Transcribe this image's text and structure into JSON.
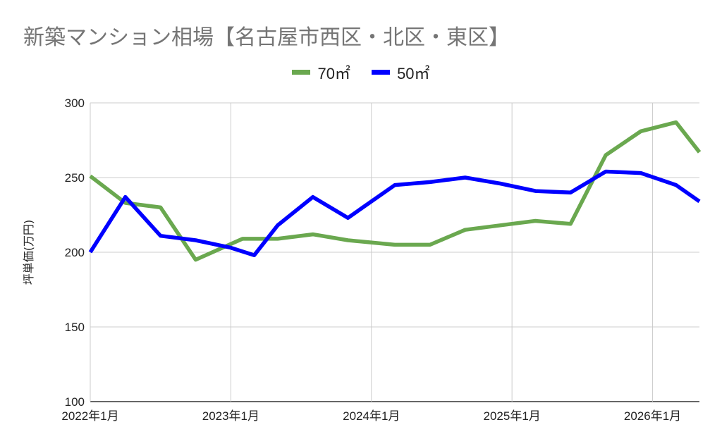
{
  "chart_data": {
    "type": "line",
    "title": "新築マンション相場【名古屋市西区・北区・東区】",
    "ylabel": "坪単価(万円)",
    "xlabel": "",
    "ylim": [
      100,
      300
    ],
    "yticks": [
      "100",
      "150",
      "200",
      "250",
      "300"
    ],
    "xticks": [
      "2022年1月",
      "2023年1月",
      "2024年1月",
      "2025年1月",
      "2026年1月"
    ],
    "x_range": [
      "2022-01",
      "2026-05"
    ],
    "grid": true,
    "legend_position": "top",
    "series": [
      {
        "name": "70㎡",
        "color": "#6aa84f",
        "points": [
          {
            "x": "2022-01",
            "y": 251
          },
          {
            "x": "2022-04",
            "y": 233
          },
          {
            "x": "2022-07",
            "y": 230
          },
          {
            "x": "2022-10",
            "y": 195
          },
          {
            "x": "2023-02",
            "y": 209
          },
          {
            "x": "2023-05",
            "y": 209
          },
          {
            "x": "2023-08",
            "y": 212
          },
          {
            "x": "2023-11",
            "y": 208
          },
          {
            "x": "2024-03",
            "y": 205
          },
          {
            "x": "2024-06",
            "y": 205
          },
          {
            "x": "2024-09",
            "y": 215
          },
          {
            "x": "2025-01",
            "y": 219
          },
          {
            "x": "2025-03",
            "y": 221
          },
          {
            "x": "2025-06",
            "y": 219
          },
          {
            "x": "2025-09",
            "y": 265
          },
          {
            "x": "2025-12",
            "y": 281
          },
          {
            "x": "2026-03",
            "y": 287
          },
          {
            "x": "2026-05",
            "y": 267
          }
        ]
      },
      {
        "name": "50㎡",
        "color": "#0000ff",
        "points": [
          {
            "x": "2022-01",
            "y": 200
          },
          {
            "x": "2022-04",
            "y": 237
          },
          {
            "x": "2022-07",
            "y": 211
          },
          {
            "x": "2022-10",
            "y": 208
          },
          {
            "x": "2023-01",
            "y": 203
          },
          {
            "x": "2023-03",
            "y": 198
          },
          {
            "x": "2023-05",
            "y": 218
          },
          {
            "x": "2023-08",
            "y": 237
          },
          {
            "x": "2023-11",
            "y": 223
          },
          {
            "x": "2024-03",
            "y": 245
          },
          {
            "x": "2024-06",
            "y": 247
          },
          {
            "x": "2024-09",
            "y": 250
          },
          {
            "x": "2024-12",
            "y": 246
          },
          {
            "x": "2025-03",
            "y": 241
          },
          {
            "x": "2025-06",
            "y": 240
          },
          {
            "x": "2025-09",
            "y": 254
          },
          {
            "x": "2025-12",
            "y": 253
          },
          {
            "x": "2026-03",
            "y": 245
          },
          {
            "x": "2026-05",
            "y": 234
          }
        ]
      }
    ]
  }
}
